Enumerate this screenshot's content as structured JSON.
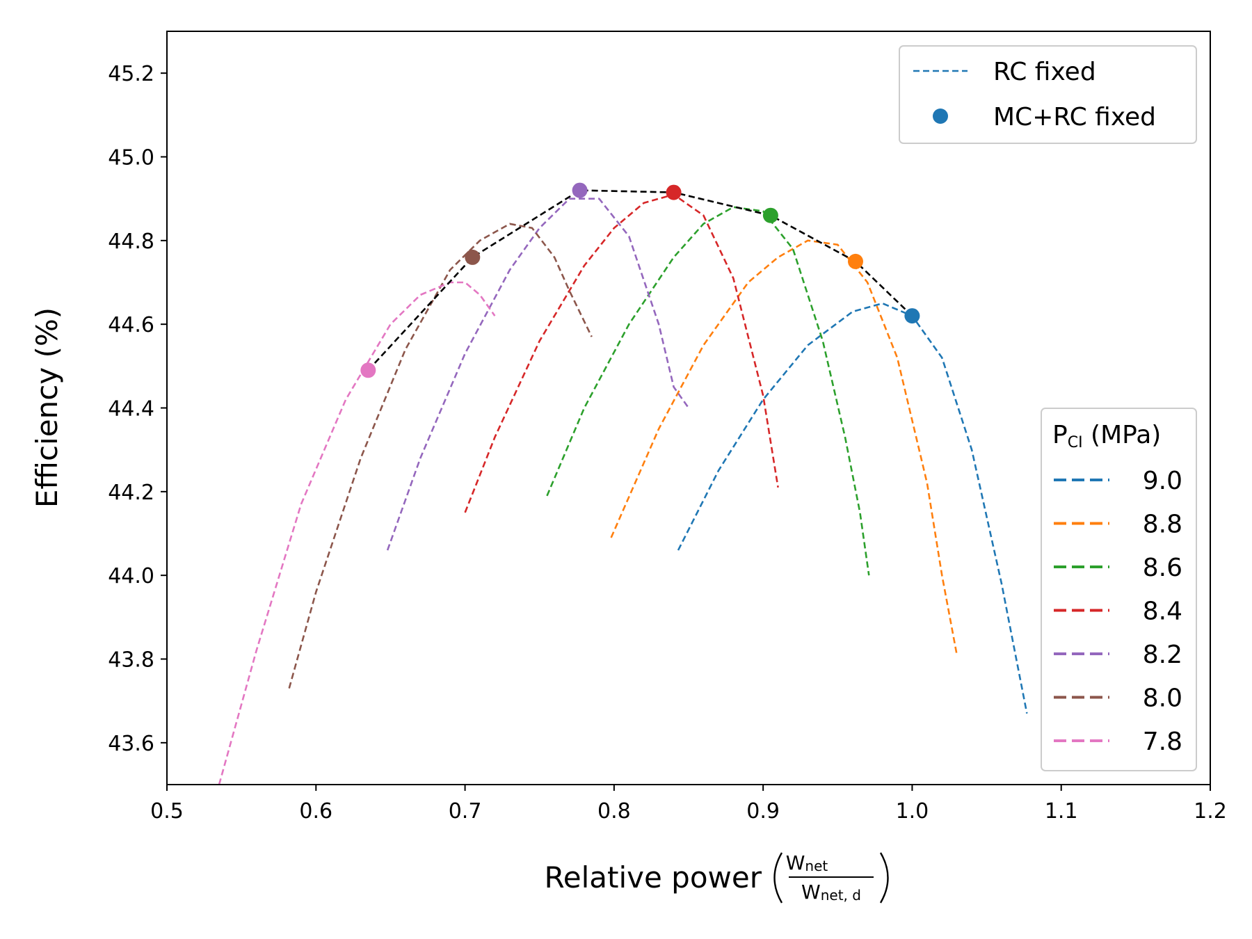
{
  "chart_data": {
    "type": "line",
    "xlabel": "Relative power",
    "xlabel_fraction": {
      "numerator": "W",
      "numerator_sub": "net",
      "denominator": "W",
      "denominator_sub": "net, d"
    },
    "ylabel": "Efficiency (%)",
    "xlim": [
      0.5,
      1.2
    ],
    "ylim": [
      43.5,
      45.3
    ],
    "xticks": [
      0.5,
      0.6,
      0.7,
      0.8,
      0.9,
      1.0,
      1.1,
      1.2
    ],
    "xtick_labels": [
      "0.5",
      "0.6",
      "0.7",
      "0.8",
      "0.9",
      "1.0",
      "1.1",
      "1.2"
    ],
    "yticks": [
      43.6,
      43.8,
      44.0,
      44.2,
      44.4,
      44.6,
      44.8,
      45.0,
      45.2
    ],
    "ytick_labels": [
      "43.6",
      "43.8",
      "44.0",
      "44.2",
      "44.4",
      "44.6",
      "44.8",
      "45.0",
      "45.2"
    ],
    "grid": false,
    "legend_top": {
      "placement": "top-right",
      "entries": [
        {
          "label": "RC fixed",
          "style": "dashed-line",
          "color": "#1f77b4"
        },
        {
          "label": "MC+RC fixed",
          "style": "marker",
          "color": "#1f77b4"
        }
      ]
    },
    "legend_bottom": {
      "placement": "lower-right",
      "title": "P",
      "title_sub": "CI",
      "title_suffix": " (MPa)",
      "entries": [
        "9.0",
        "8.8",
        "8.6",
        "8.4",
        "8.2",
        "8.0",
        "7.8"
      ]
    },
    "series": [
      {
        "name": "9.0",
        "color": "#1f77b4",
        "x": [
          0.843,
          0.87,
          0.9,
          0.93,
          0.96,
          0.98,
          1.0,
          1.02,
          1.04,
          1.06,
          1.077
        ],
        "y": [
          44.06,
          44.25,
          44.42,
          44.55,
          44.63,
          44.65,
          44.62,
          44.52,
          44.3,
          43.98,
          43.67
        ]
      },
      {
        "name": "8.8",
        "color": "#ff7f0e",
        "x": [
          0.798,
          0.83,
          0.86,
          0.89,
          0.91,
          0.93,
          0.95,
          0.97,
          0.99,
          1.01,
          1.02,
          1.03
        ],
        "y": [
          44.09,
          44.35,
          44.55,
          44.7,
          44.76,
          44.8,
          44.79,
          44.7,
          44.52,
          44.22,
          44.0,
          43.81
        ]
      },
      {
        "name": "8.6",
        "color": "#2ca02c",
        "x": [
          0.755,
          0.78,
          0.81,
          0.84,
          0.86,
          0.88,
          0.9,
          0.92,
          0.94,
          0.955,
          0.965,
          0.971
        ],
        "y": [
          44.19,
          44.4,
          44.6,
          44.76,
          44.84,
          44.88,
          44.87,
          44.78,
          44.56,
          44.33,
          44.15,
          44.0
        ]
      },
      {
        "name": "8.4",
        "color": "#d62728",
        "x": [
          0.7,
          0.72,
          0.75,
          0.78,
          0.8,
          0.82,
          0.84,
          0.86,
          0.88,
          0.9,
          0.91
        ],
        "y": [
          44.15,
          44.33,
          44.56,
          44.74,
          44.83,
          44.89,
          44.91,
          44.86,
          44.71,
          44.43,
          44.21
        ]
      },
      {
        "name": "8.2",
        "color": "#9467bd",
        "x": [
          0.648,
          0.67,
          0.7,
          0.73,
          0.75,
          0.77,
          0.79,
          0.81,
          0.83,
          0.84,
          0.85
        ],
        "y": [
          44.06,
          44.28,
          44.53,
          44.73,
          44.83,
          44.9,
          44.9,
          44.81,
          44.6,
          44.45,
          44.4
        ]
      },
      {
        "name": "8.0",
        "color": "#8c564b",
        "x": [
          0.582,
          0.6,
          0.63,
          0.66,
          0.69,
          0.71,
          0.73,
          0.745,
          0.76,
          0.77,
          0.785
        ],
        "y": [
          43.73,
          43.96,
          44.28,
          44.54,
          44.73,
          44.8,
          44.84,
          44.83,
          44.76,
          44.68,
          44.57
        ]
      },
      {
        "name": "7.8",
        "color": "#e377c2",
        "x": [
          0.535,
          0.56,
          0.59,
          0.62,
          0.65,
          0.67,
          0.69,
          0.7,
          0.71,
          0.72
        ],
        "y": [
          43.5,
          43.82,
          44.17,
          44.42,
          44.6,
          44.67,
          44.7,
          44.7,
          44.67,
          44.62
        ]
      }
    ],
    "optimum_line": {
      "color": "#000000",
      "x": [
        0.635,
        0.705,
        0.777,
        0.84,
        0.905,
        0.962,
        1.0
      ],
      "y": [
        44.49,
        44.76,
        44.92,
        44.915,
        44.86,
        44.75,
        44.62
      ]
    },
    "markers": [
      {
        "series": "9.0",
        "color": "#1f77b4",
        "x": 1.0,
        "y": 44.62
      },
      {
        "series": "8.8",
        "color": "#ff7f0e",
        "x": 0.962,
        "y": 44.75
      },
      {
        "series": "8.6",
        "color": "#2ca02c",
        "x": 0.905,
        "y": 44.86
      },
      {
        "series": "8.4",
        "color": "#d62728",
        "x": 0.84,
        "y": 44.915
      },
      {
        "series": "8.2",
        "color": "#9467bd",
        "x": 0.777,
        "y": 44.92
      },
      {
        "series": "8.0",
        "color": "#8c564b",
        "x": 0.705,
        "y": 44.76
      },
      {
        "series": "7.8",
        "color": "#e377c2",
        "x": 0.635,
        "y": 44.49
      }
    ]
  }
}
